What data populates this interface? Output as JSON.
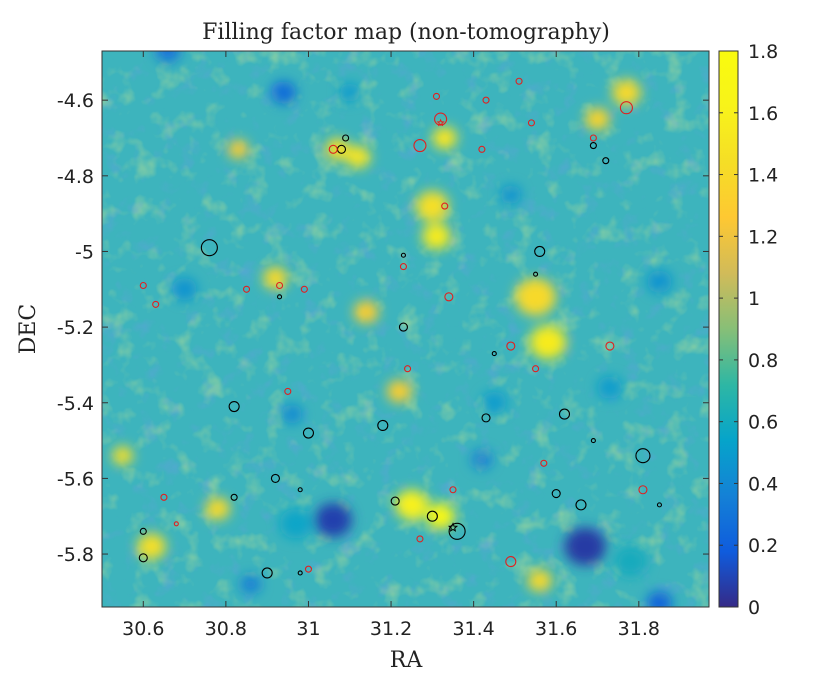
{
  "chart_data": {
    "type": "heatmap",
    "title": "Filling factor map (non-tomography)",
    "xlabel": "RA",
    "ylabel": "DEC",
    "xlim": [
      30.5,
      31.97
    ],
    "ylim": [
      -5.94,
      -4.47
    ],
    "x_ticks": [
      30.6,
      30.8,
      31,
      31.2,
      31.4,
      31.6,
      31.8
    ],
    "x_tick_labels": [
      "30.6",
      "30.8",
      "31",
      "31.2",
      "31.4",
      "31.6",
      "31.8"
    ],
    "y_ticks": [
      -4.6,
      -4.8,
      -5,
      -5.2,
      -5.4,
      -5.6,
      -5.8
    ],
    "y_tick_labels": [
      "-4.6",
      "-4.8",
      "-5",
      "-5.2",
      "-5.4",
      "-5.6",
      "-5.8"
    ],
    "colorbar": {
      "colormap": "parula",
      "range": [
        0,
        1.8
      ],
      "ticks": [
        0,
        0.2,
        0.4,
        0.6,
        0.8,
        1,
        1.2,
        1.4,
        1.6,
        1.8
      ],
      "tick_labels": [
        "0",
        "0.2",
        "0.4",
        "0.6",
        "0.8",
        "1",
        "1.2",
        "1.4",
        "1.6",
        "1.8"
      ]
    },
    "field_features": [
      {
        "ra": 31.06,
        "dec": -5.71,
        "value": 0.08,
        "size": 0.045
      },
      {
        "ra": 31.67,
        "dec": -5.78,
        "value": 0.06,
        "size": 0.05
      },
      {
        "ra": 30.94,
        "dec": -4.58,
        "value": 0.25,
        "size": 0.03
      },
      {
        "ra": 30.66,
        "dec": -4.47,
        "value": 0.3,
        "size": 0.03
      },
      {
        "ra": 31.32,
        "dec": -5.7,
        "value": 1.7,
        "size": 0.035
      },
      {
        "ra": 31.25,
        "dec": -5.67,
        "value": 1.6,
        "size": 0.04
      },
      {
        "ra": 31.58,
        "dec": -5.24,
        "value": 1.55,
        "size": 0.045
      },
      {
        "ra": 31.55,
        "dec": -5.12,
        "value": 1.4,
        "size": 0.05
      },
      {
        "ra": 31.31,
        "dec": -4.96,
        "value": 1.55,
        "size": 0.035
      },
      {
        "ra": 31.3,
        "dec": -4.88,
        "value": 1.45,
        "size": 0.04
      },
      {
        "ra": 31.33,
        "dec": -4.7,
        "value": 1.5,
        "size": 0.03
      },
      {
        "ra": 31.12,
        "dec": -4.75,
        "value": 1.5,
        "size": 0.03
      },
      {
        "ra": 31.07,
        "dec": -4.73,
        "value": 1.45,
        "size": 0.03
      },
      {
        "ra": 30.97,
        "dec": -5.72,
        "value": 0.55,
        "size": 0.04
      },
      {
        "ra": 31.78,
        "dec": -5.82,
        "value": 0.6,
        "size": 0.04
      },
      {
        "ra": 31.85,
        "dec": -5.93,
        "value": 0.2,
        "size": 0.03
      },
      {
        "ra": 30.55,
        "dec": -5.54,
        "value": 1.45,
        "size": 0.025
      },
      {
        "ra": 30.62,
        "dec": -5.78,
        "value": 1.45,
        "size": 0.035
      },
      {
        "ra": 30.78,
        "dec": -5.68,
        "value": 1.4,
        "size": 0.03
      },
      {
        "ra": 31.56,
        "dec": -5.87,
        "value": 1.4,
        "size": 0.03
      },
      {
        "ra": 31.77,
        "dec": -4.58,
        "value": 1.4,
        "size": 0.035
      },
      {
        "ra": 31.7,
        "dec": -4.65,
        "value": 1.35,
        "size": 0.03
      },
      {
        "ra": 30.92,
        "dec": -5.07,
        "value": 1.4,
        "size": 0.03
      },
      {
        "ra": 31.22,
        "dec": -5.37,
        "value": 1.3,
        "size": 0.03
      },
      {
        "ra": 31.42,
        "dec": -5.55,
        "value": 0.35,
        "size": 0.025
      },
      {
        "ra": 30.96,
        "dec": -5.43,
        "value": 0.4,
        "size": 0.025
      },
      {
        "ra": 31.1,
        "dec": -4.58,
        "value": 0.5,
        "size": 0.025
      },
      {
        "ra": 31.49,
        "dec": -4.85,
        "value": 0.45,
        "size": 0.025
      },
      {
        "ra": 31.85,
        "dec": -5.08,
        "value": 0.45,
        "size": 0.03
      },
      {
        "ra": 30.7,
        "dec": -5.1,
        "value": 0.45,
        "size": 0.03
      },
      {
        "ra": 30.86,
        "dec": -5.88,
        "value": 0.35,
        "size": 0.025
      },
      {
        "ra": 31.45,
        "dec": -5.4,
        "value": 0.5,
        "size": 0.03
      },
      {
        "ra": 31.73,
        "dec": -5.36,
        "value": 0.5,
        "size": 0.03
      },
      {
        "ra": 31.14,
        "dec": -5.16,
        "value": 1.3,
        "size": 0.03
      },
      {
        "ra": 30.83,
        "dec": -4.73,
        "value": 1.3,
        "size": 0.025
      }
    ],
    "markers": [
      {
        "ra": 30.76,
        "dec": -4.99,
        "r": 8,
        "color": "black",
        "shape": "circle"
      },
      {
        "ra": 30.82,
        "dec": -5.41,
        "r": 5,
        "color": "black",
        "shape": "circle"
      },
      {
        "ra": 30.93,
        "dec": -5.12,
        "r": 2,
        "color": "black",
        "shape": "circle"
      },
      {
        "ra": 31.09,
        "dec": -4.7,
        "r": 3,
        "color": "black",
        "shape": "circle"
      },
      {
        "ra": 31.08,
        "dec": -4.73,
        "r": 4,
        "color": "black",
        "shape": "circle"
      },
      {
        "ra": 31.0,
        "dec": -5.48,
        "r": 5,
        "color": "black",
        "shape": "circle"
      },
      {
        "ra": 31.18,
        "dec": -5.46,
        "r": 5,
        "color": "black",
        "shape": "circle"
      },
      {
        "ra": 31.23,
        "dec": -5.2,
        "r": 4,
        "color": "black",
        "shape": "circle"
      },
      {
        "ra": 31.23,
        "dec": -5.01,
        "r": 2,
        "color": "black",
        "shape": "circle"
      },
      {
        "ra": 31.43,
        "dec": -5.44,
        "r": 4,
        "color": "black",
        "shape": "circle"
      },
      {
        "ra": 31.45,
        "dec": -5.27,
        "r": 2,
        "color": "black",
        "shape": "circle"
      },
      {
        "ra": 31.55,
        "dec": -5.06,
        "r": 2,
        "color": "black",
        "shape": "circle"
      },
      {
        "ra": 31.56,
        "dec": -5.0,
        "r": 5,
        "color": "black",
        "shape": "circle"
      },
      {
        "ra": 31.62,
        "dec": -5.43,
        "r": 5,
        "color": "black",
        "shape": "circle"
      },
      {
        "ra": 31.69,
        "dec": -5.5,
        "r": 2,
        "color": "black",
        "shape": "circle"
      },
      {
        "ra": 31.69,
        "dec": -4.72,
        "r": 3,
        "color": "black",
        "shape": "circle"
      },
      {
        "ra": 31.72,
        "dec": -4.76,
        "r": 3,
        "color": "black",
        "shape": "circle"
      },
      {
        "ra": 31.81,
        "dec": -5.54,
        "r": 7,
        "color": "black",
        "shape": "circle"
      },
      {
        "ra": 31.85,
        "dec": -5.67,
        "r": 2,
        "color": "black",
        "shape": "circle"
      },
      {
        "ra": 31.6,
        "dec": -5.64,
        "r": 4,
        "color": "black",
        "shape": "circle"
      },
      {
        "ra": 31.66,
        "dec": -5.67,
        "r": 5,
        "color": "black",
        "shape": "circle"
      },
      {
        "ra": 31.36,
        "dec": -5.74,
        "r": 8,
        "color": "black",
        "shape": "circle"
      },
      {
        "ra": 31.3,
        "dec": -5.7,
        "r": 5,
        "color": "black",
        "shape": "circle"
      },
      {
        "ra": 31.21,
        "dec": -5.66,
        "r": 4,
        "color": "black",
        "shape": "circle"
      },
      {
        "ra": 30.92,
        "dec": -5.6,
        "r": 4,
        "color": "black",
        "shape": "circle"
      },
      {
        "ra": 30.82,
        "dec": -5.65,
        "r": 3,
        "color": "black",
        "shape": "circle"
      },
      {
        "ra": 30.98,
        "dec": -5.63,
        "r": 2,
        "color": "black",
        "shape": "circle"
      },
      {
        "ra": 30.6,
        "dec": -5.74,
        "r": 3,
        "color": "black",
        "shape": "circle"
      },
      {
        "ra": 30.6,
        "dec": -5.81,
        "r": 4,
        "color": "black",
        "shape": "circle"
      },
      {
        "ra": 30.9,
        "dec": -5.85,
        "r": 5,
        "color": "black",
        "shape": "circle"
      },
      {
        "ra": 30.98,
        "dec": -5.85,
        "r": 2,
        "color": "black",
        "shape": "circle"
      },
      {
        "ra": 31.35,
        "dec": -5.73,
        "r": 4,
        "color": "black",
        "shape": "star"
      },
      {
        "ra": 30.6,
        "dec": -5.09,
        "r": 3,
        "color": "red",
        "shape": "circle"
      },
      {
        "ra": 30.63,
        "dec": -5.14,
        "r": 3,
        "color": "red",
        "shape": "circle"
      },
      {
        "ra": 30.85,
        "dec": -5.1,
        "r": 3,
        "color": "red",
        "shape": "circle"
      },
      {
        "ra": 30.93,
        "dec": -5.09,
        "r": 3,
        "color": "red",
        "shape": "circle"
      },
      {
        "ra": 30.99,
        "dec": -5.1,
        "r": 3,
        "color": "red",
        "shape": "circle"
      },
      {
        "ra": 30.95,
        "dec": -5.37,
        "r": 3,
        "color": "red",
        "shape": "circle"
      },
      {
        "ra": 30.65,
        "dec": -5.65,
        "r": 3,
        "color": "red",
        "shape": "circle"
      },
      {
        "ra": 30.68,
        "dec": -5.72,
        "r": 2,
        "color": "red",
        "shape": "circle"
      },
      {
        "ra": 31.0,
        "dec": -5.84,
        "r": 3,
        "color": "red",
        "shape": "circle"
      },
      {
        "ra": 31.06,
        "dec": -4.73,
        "r": 4,
        "color": "red",
        "shape": "circle"
      },
      {
        "ra": 31.27,
        "dec": -4.72,
        "r": 6,
        "color": "red",
        "shape": "circle"
      },
      {
        "ra": 31.32,
        "dec": -4.65,
        "r": 6,
        "color": "red",
        "shape": "circle"
      },
      {
        "ra": 31.31,
        "dec": -4.59,
        "r": 3,
        "color": "red",
        "shape": "circle"
      },
      {
        "ra": 31.33,
        "dec": -4.88,
        "r": 3,
        "color": "red",
        "shape": "circle"
      },
      {
        "ra": 31.42,
        "dec": -4.73,
        "r": 3,
        "color": "red",
        "shape": "circle"
      },
      {
        "ra": 31.43,
        "dec": -4.6,
        "r": 3,
        "color": "red",
        "shape": "circle"
      },
      {
        "ra": 31.51,
        "dec": -4.55,
        "r": 3,
        "color": "red",
        "shape": "circle"
      },
      {
        "ra": 31.54,
        "dec": -4.66,
        "r": 3,
        "color": "red",
        "shape": "circle"
      },
      {
        "ra": 31.77,
        "dec": -4.62,
        "r": 6,
        "color": "red",
        "shape": "circle"
      },
      {
        "ra": 31.69,
        "dec": -4.7,
        "r": 3,
        "color": "red",
        "shape": "circle"
      },
      {
        "ra": 31.23,
        "dec": -5.04,
        "r": 3,
        "color": "red",
        "shape": "circle"
      },
      {
        "ra": 31.34,
        "dec": -5.12,
        "r": 4,
        "color": "red",
        "shape": "circle"
      },
      {
        "ra": 31.24,
        "dec": -5.31,
        "r": 3,
        "color": "red",
        "shape": "circle"
      },
      {
        "ra": 31.49,
        "dec": -5.25,
        "r": 4,
        "color": "red",
        "shape": "circle"
      },
      {
        "ra": 31.55,
        "dec": -5.31,
        "r": 3,
        "color": "red",
        "shape": "circle"
      },
      {
        "ra": 31.73,
        "dec": -5.25,
        "r": 4,
        "color": "red",
        "shape": "circle"
      },
      {
        "ra": 31.57,
        "dec": -5.56,
        "r": 3,
        "color": "red",
        "shape": "circle"
      },
      {
        "ra": 31.35,
        "dec": -5.63,
        "r": 3,
        "color": "red",
        "shape": "circle"
      },
      {
        "ra": 31.27,
        "dec": -5.76,
        "r": 3,
        "color": "red",
        "shape": "circle"
      },
      {
        "ra": 31.49,
        "dec": -5.82,
        "r": 5,
        "color": "red",
        "shape": "circle"
      },
      {
        "ra": 31.81,
        "dec": -5.63,
        "r": 4,
        "color": "red",
        "shape": "circle"
      },
      {
        "ra": 31.32,
        "dec": -4.66,
        "r": 3,
        "color": "red",
        "shape": "star"
      }
    ]
  }
}
